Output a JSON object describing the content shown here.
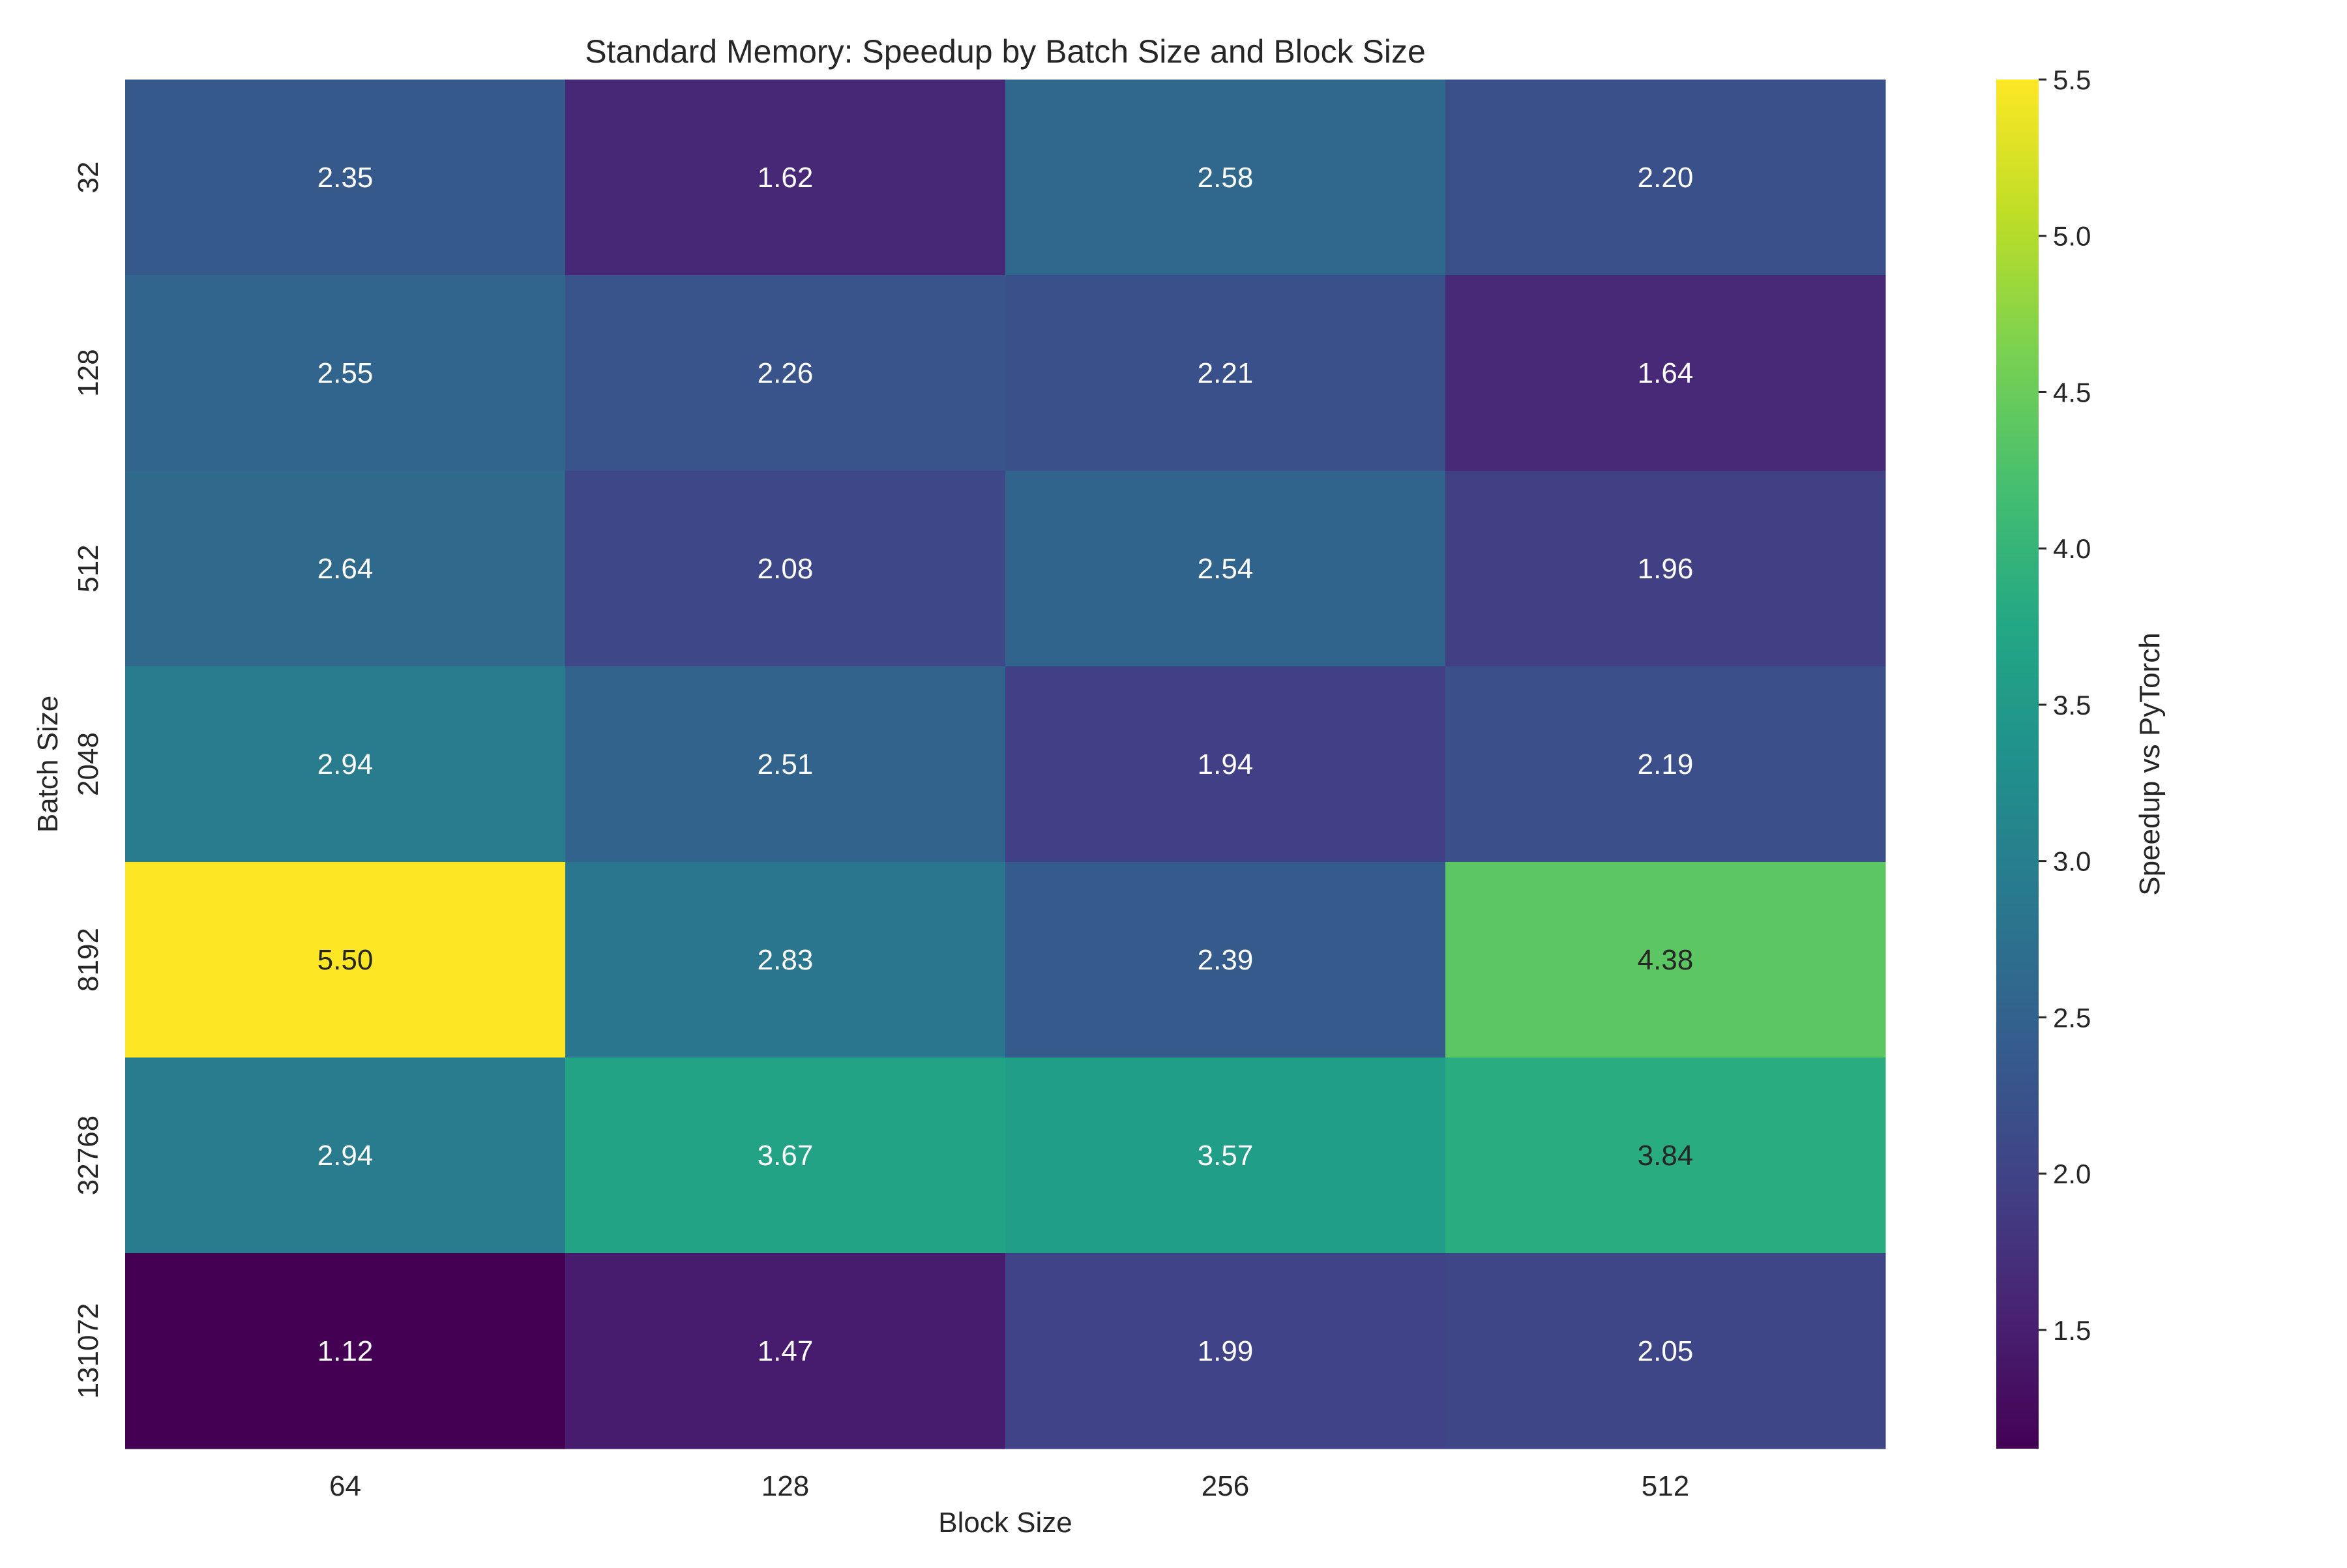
{
  "chart_data": {
    "type": "heatmap",
    "title": "Standard Memory: Speedup by Batch Size and Block Size",
    "xlabel": "Block Size",
    "ylabel": "Batch Size",
    "x_categories": [
      "64",
      "128",
      "256",
      "512"
    ],
    "y_categories": [
      "32",
      "128",
      "512",
      "2048",
      "8192",
      "32768",
      "131072"
    ],
    "values": [
      [
        2.35,
        1.62,
        2.58,
        2.2
      ],
      [
        2.55,
        2.26,
        2.21,
        1.64
      ],
      [
        2.64,
        2.08,
        2.54,
        1.96
      ],
      [
        2.94,
        2.51,
        1.94,
        2.19
      ],
      [
        5.5,
        2.83,
        2.39,
        4.38
      ],
      [
        2.94,
        3.67,
        3.57,
        3.84
      ],
      [
        1.12,
        1.47,
        1.99,
        2.05
      ]
    ],
    "colormap": "viridis",
    "colorbar": {
      "label": "Speedup vs PyTorch",
      "range": [
        1.12,
        5.5
      ],
      "ticks": [
        "1.5",
        "2.0",
        "2.5",
        "3.0",
        "3.5",
        "4.0",
        "4.5",
        "5.0",
        "5.5"
      ]
    },
    "grid": false
  }
}
